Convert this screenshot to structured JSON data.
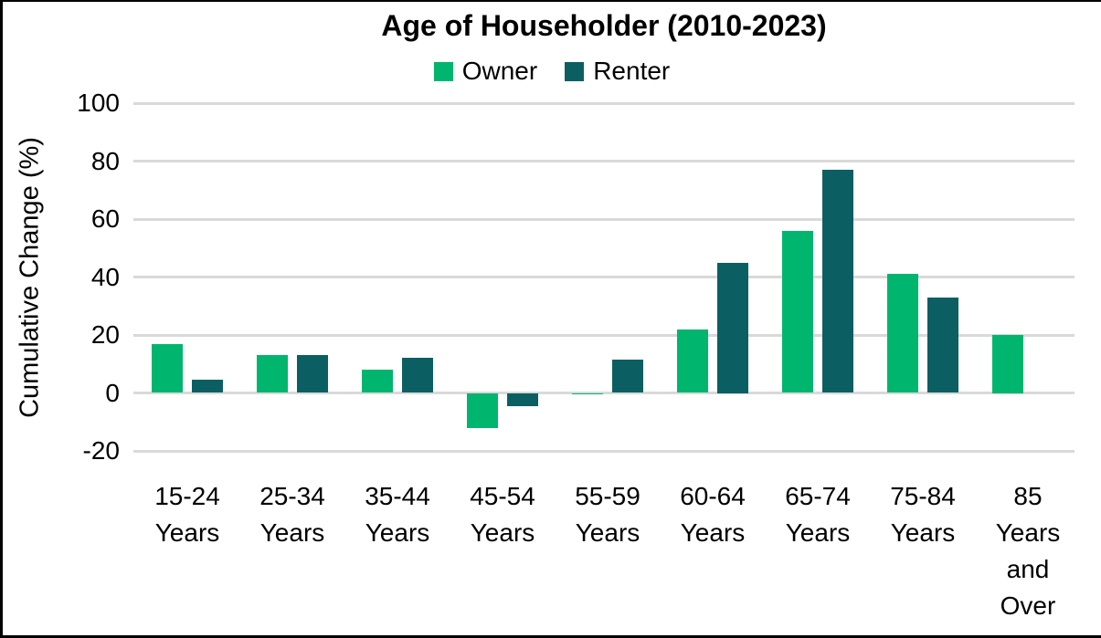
{
  "frame": {
    "background": "#ffffff",
    "border_color": "#000000"
  },
  "chart_data": {
    "type": "bar",
    "title": "Age of Householder (2010-2023)",
    "ylabel": "Cumulative Change (%)",
    "ylim": [
      -20,
      100
    ],
    "yticks": [
      100,
      80,
      60,
      40,
      20,
      0,
      -20
    ],
    "grid": "horizontal",
    "gridline_color": "#d9d9d9",
    "axis_text_color": "#000000",
    "legend_position": "top-center",
    "categories": [
      "15-24 Years",
      "25-34 Years",
      "35-44 Years",
      "45-54 Years",
      "55-59 Years",
      "60-64 Years",
      "65-74 Years",
      "75-84 Years",
      "85 Years and Over"
    ],
    "category_label_lines": [
      [
        "15-24",
        "Years"
      ],
      [
        "25-34",
        "Years"
      ],
      [
        "35-44",
        "Years"
      ],
      [
        "45-54",
        "Years"
      ],
      [
        "55-59",
        "Years"
      ],
      [
        "60-64",
        "Years"
      ],
      [
        "65-74",
        "Years"
      ],
      [
        "75-84",
        "Years"
      ],
      [
        "85",
        "Years",
        "and",
        "Over"
      ]
    ],
    "series": [
      {
        "name": "Owner",
        "color": "#00b56e",
        "values": [
          17,
          13,
          8,
          -12,
          -0.5,
          22,
          56,
          41,
          20
        ]
      },
      {
        "name": "Renter",
        "color": "#0b5f63",
        "values": [
          4.5,
          13,
          12,
          -4.5,
          11.5,
          45,
          77,
          33,
          null
        ]
      }
    ]
  }
}
